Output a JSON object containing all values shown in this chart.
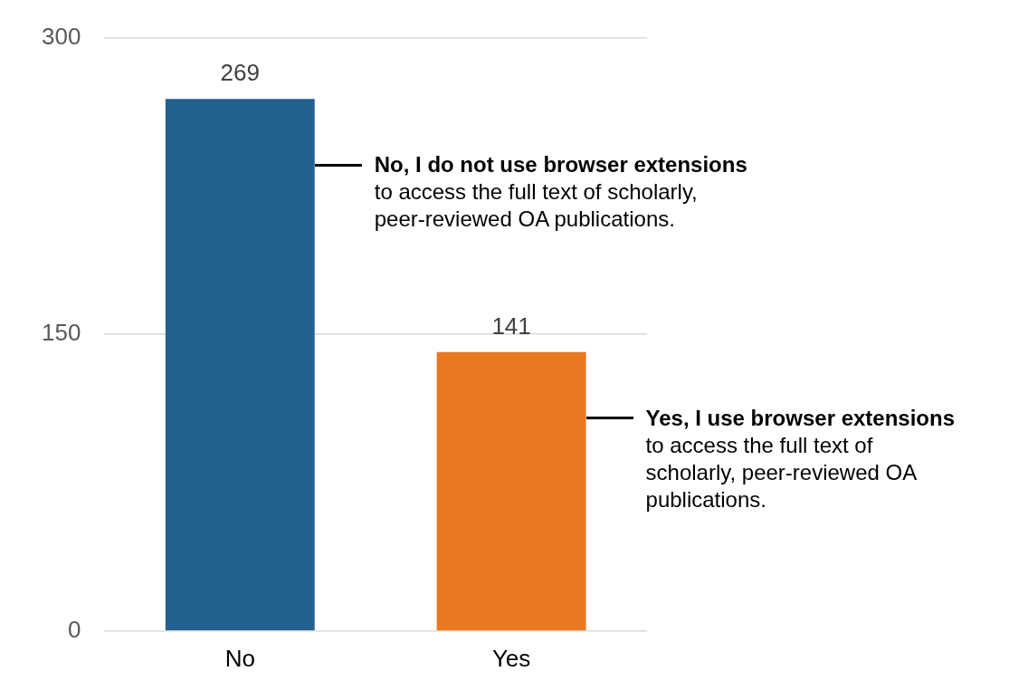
{
  "chart_data": {
    "type": "bar",
    "categories": [
      "No",
      "Yes"
    ],
    "values": [
      269,
      141
    ],
    "colors": [
      "#23618e",
      "#e87722"
    ],
    "ylim": [
      0,
      300
    ],
    "yticks": [
      0,
      150,
      300
    ],
    "grid": "y",
    "legend": false,
    "data_labels": true,
    "annotations": [
      "No, I do not use browser extensions",
      "to access the full text of scholarly, peer-reviewed OA publications.",
      "Yes, I use browser extensions",
      "to access the full text of scholarly, peer-reviewed OA publications."
    ]
  }
}
